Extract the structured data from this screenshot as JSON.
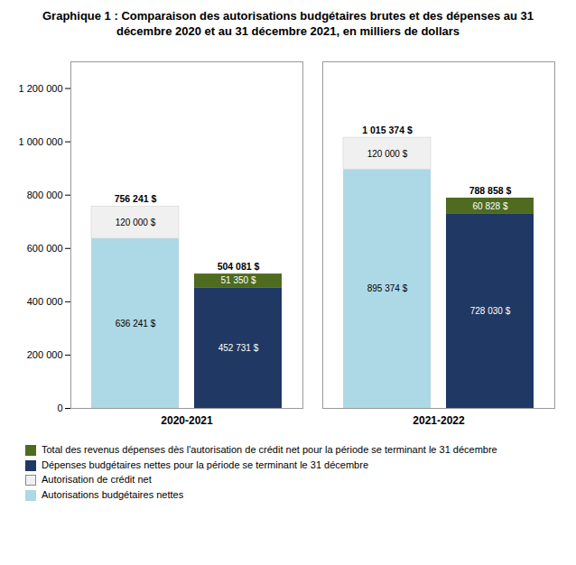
{
  "chart_data": {
    "type": "bar",
    "title": "Graphique 1 : Comparaison des autorisations budgétaires brutes et des dépenses au 31\ndécembre 2020 et au 31 décembre 2021, en milliers de dollars",
    "categories": [
      "2020-2021",
      "2021-2022"
    ],
    "stacked": true,
    "data_labels": true,
    "legend": "bottom",
    "grid": false,
    "ylim": [
      0,
      1300000
    ],
    "yticks": [
      0,
      {
        "value": 200000,
        "label": "200 000"
      },
      {
        "value": 400000,
        "label": "400 000"
      },
      {
        "value": 600000,
        "label": "600 000"
      },
      {
        "value": 800000,
        "label": "800 000"
      },
      {
        "value": 1000000,
        "label": "1 000 000"
      },
      {
        "value": 1200000,
        "label": "1 200 000"
      }
    ],
    "stacks": [
      {
        "series": [
          {
            "name": "Autorisations budgétaires nettes",
            "color": "#add8e6",
            "values": [
              636241,
              895374
            ],
            "value_labels": [
              "636 241 $",
              "895 374 $"
            ]
          },
          {
            "name": "Autorisation de crédit net",
            "color": "#f0f0f0",
            "values": [
              120000,
              120000
            ],
            "value_labels": [
              "120 000 $",
              "120 000 $"
            ]
          }
        ],
        "totals": {
          "values": [
            756241,
            1015374
          ],
          "value_labels": [
            "756 241 $",
            "1 015 374 $"
          ]
        }
      },
      {
        "series": [
          {
            "name": "Dépenses budgétaires nettes pour la période se terminant le 31 décembre",
            "color": "#1f3864",
            "values": [
              452731,
              728030
            ],
            "value_labels": [
              "452 731 $",
              "728 030 $"
            ]
          },
          {
            "name": "Total des revenus dépenses dès l'autorisation de crédit net pour la période se terminant le 31 décembre",
            "color": "#4e6b1f",
            "values": [
              51350,
              60828
            ],
            "value_labels": [
              "51 350 $",
              "60 828 $"
            ]
          }
        ],
        "totals": {
          "values": [
            504081,
            788858
          ],
          "value_labels": [
            "504 081 $",
            "788 858 $"
          ]
        }
      }
    ]
  }
}
